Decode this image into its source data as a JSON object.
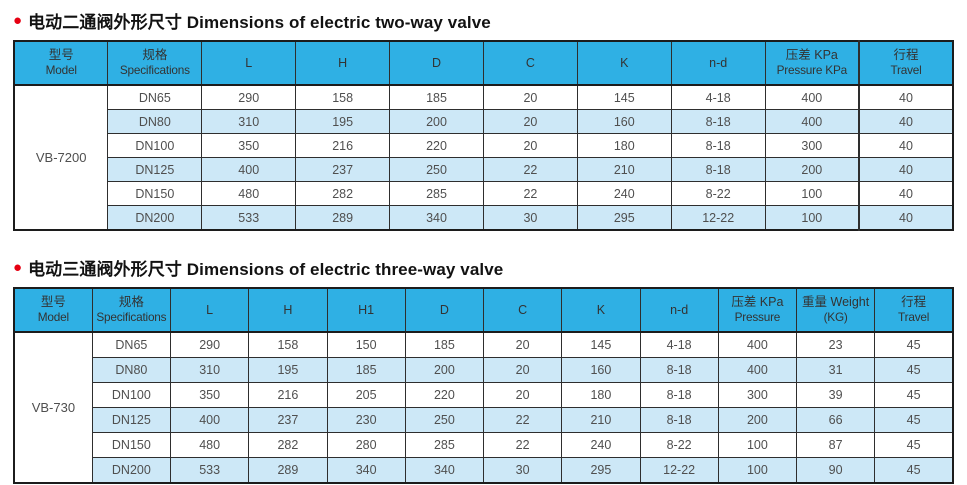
{
  "colors": {
    "header_bg": "#2fb0e4",
    "alt_row_bg": "#cde8f7",
    "border": "#2e2e2e",
    "bullet_red": "#e60012",
    "title_text": "#121212",
    "cell_text": "#4f4f4f"
  },
  "sections": [
    {
      "bullet_icon": "●",
      "title": "电动二通阀外形尺寸 Dimensions of electric two-way valve",
      "headers": [
        {
          "l1": "型号",
          "l2": "Model"
        },
        {
          "l1": "规格",
          "l2": "Specifications"
        },
        {
          "l1": "L",
          "l2": ""
        },
        {
          "l1": "H",
          "l2": ""
        },
        {
          "l1": "D",
          "l2": ""
        },
        {
          "l1": "C",
          "l2": ""
        },
        {
          "l1": "K",
          "l2": ""
        },
        {
          "l1": "n-d",
          "l2": ""
        },
        {
          "l1": "压差 KPa",
          "l2": "Pressure KPa"
        },
        {
          "l1": "行程",
          "l2": "Travel"
        }
      ],
      "model": "VB-7200",
      "rows": [
        {
          "spec": "DN65",
          "values": [
            "290",
            "158",
            "185",
            "20",
            "145",
            "4-18",
            "400",
            "40"
          ]
        },
        {
          "spec": "DN80",
          "values": [
            "310",
            "195",
            "200",
            "20",
            "160",
            "8-18",
            "400",
            "40"
          ]
        },
        {
          "spec": "DN100",
          "values": [
            "350",
            "216",
            "220",
            "20",
            "180",
            "8-18",
            "300",
            "40"
          ]
        },
        {
          "spec": "DN125",
          "values": [
            "400",
            "237",
            "250",
            "22",
            "210",
            "8-18",
            "200",
            "40"
          ]
        },
        {
          "spec": "DN150",
          "values": [
            "480",
            "282",
            "285",
            "22",
            "240",
            "8-22",
            "100",
            "40"
          ]
        },
        {
          "spec": "DN200",
          "values": [
            "533",
            "289",
            "340",
            "30",
            "295",
            "12-22",
            "100",
            "40"
          ]
        }
      ]
    },
    {
      "bullet_icon": "●",
      "title": "电动三通阀外形尺寸 Dimensions of electric three-way valve",
      "headers": [
        {
          "l1": "型号",
          "l2": "Model"
        },
        {
          "l1": "规格",
          "l2": "Specifications"
        },
        {
          "l1": "L",
          "l2": ""
        },
        {
          "l1": "H",
          "l2": ""
        },
        {
          "l1": "H1",
          "l2": ""
        },
        {
          "l1": "D",
          "l2": ""
        },
        {
          "l1": "C",
          "l2": ""
        },
        {
          "l1": "K",
          "l2": ""
        },
        {
          "l1": "n-d",
          "l2": ""
        },
        {
          "l1": "压差 KPa",
          "l2": "Pressure"
        },
        {
          "l1": "重量 Weight",
          "l2": "(KG)"
        },
        {
          "l1": "行程",
          "l2": "Travel"
        }
      ],
      "model": "VB-730",
      "rows": [
        {
          "spec": "DN65",
          "values": [
            "290",
            "158",
            "150",
            "185",
            "20",
            "145",
            "4-18",
            "400",
            "23",
            "45"
          ]
        },
        {
          "spec": "DN80",
          "values": [
            "310",
            "195",
            "185",
            "200",
            "20",
            "160",
            "8-18",
            "400",
            "31",
            "45"
          ]
        },
        {
          "spec": "DN100",
          "values": [
            "350",
            "216",
            "205",
            "220",
            "20",
            "180",
            "8-18",
            "300",
            "39",
            "45"
          ]
        },
        {
          "spec": "DN125",
          "values": [
            "400",
            "237",
            "230",
            "250",
            "22",
            "210",
            "8-18",
            "200",
            "66",
            "45"
          ]
        },
        {
          "spec": "DN150",
          "values": [
            "480",
            "282",
            "280",
            "285",
            "22",
            "240",
            "8-22",
            "100",
            "87",
            "45"
          ]
        },
        {
          "spec": "DN200",
          "values": [
            "533",
            "289",
            "340",
            "340",
            "30",
            "295",
            "12-22",
            "100",
            "90",
            "45"
          ]
        }
      ]
    }
  ]
}
